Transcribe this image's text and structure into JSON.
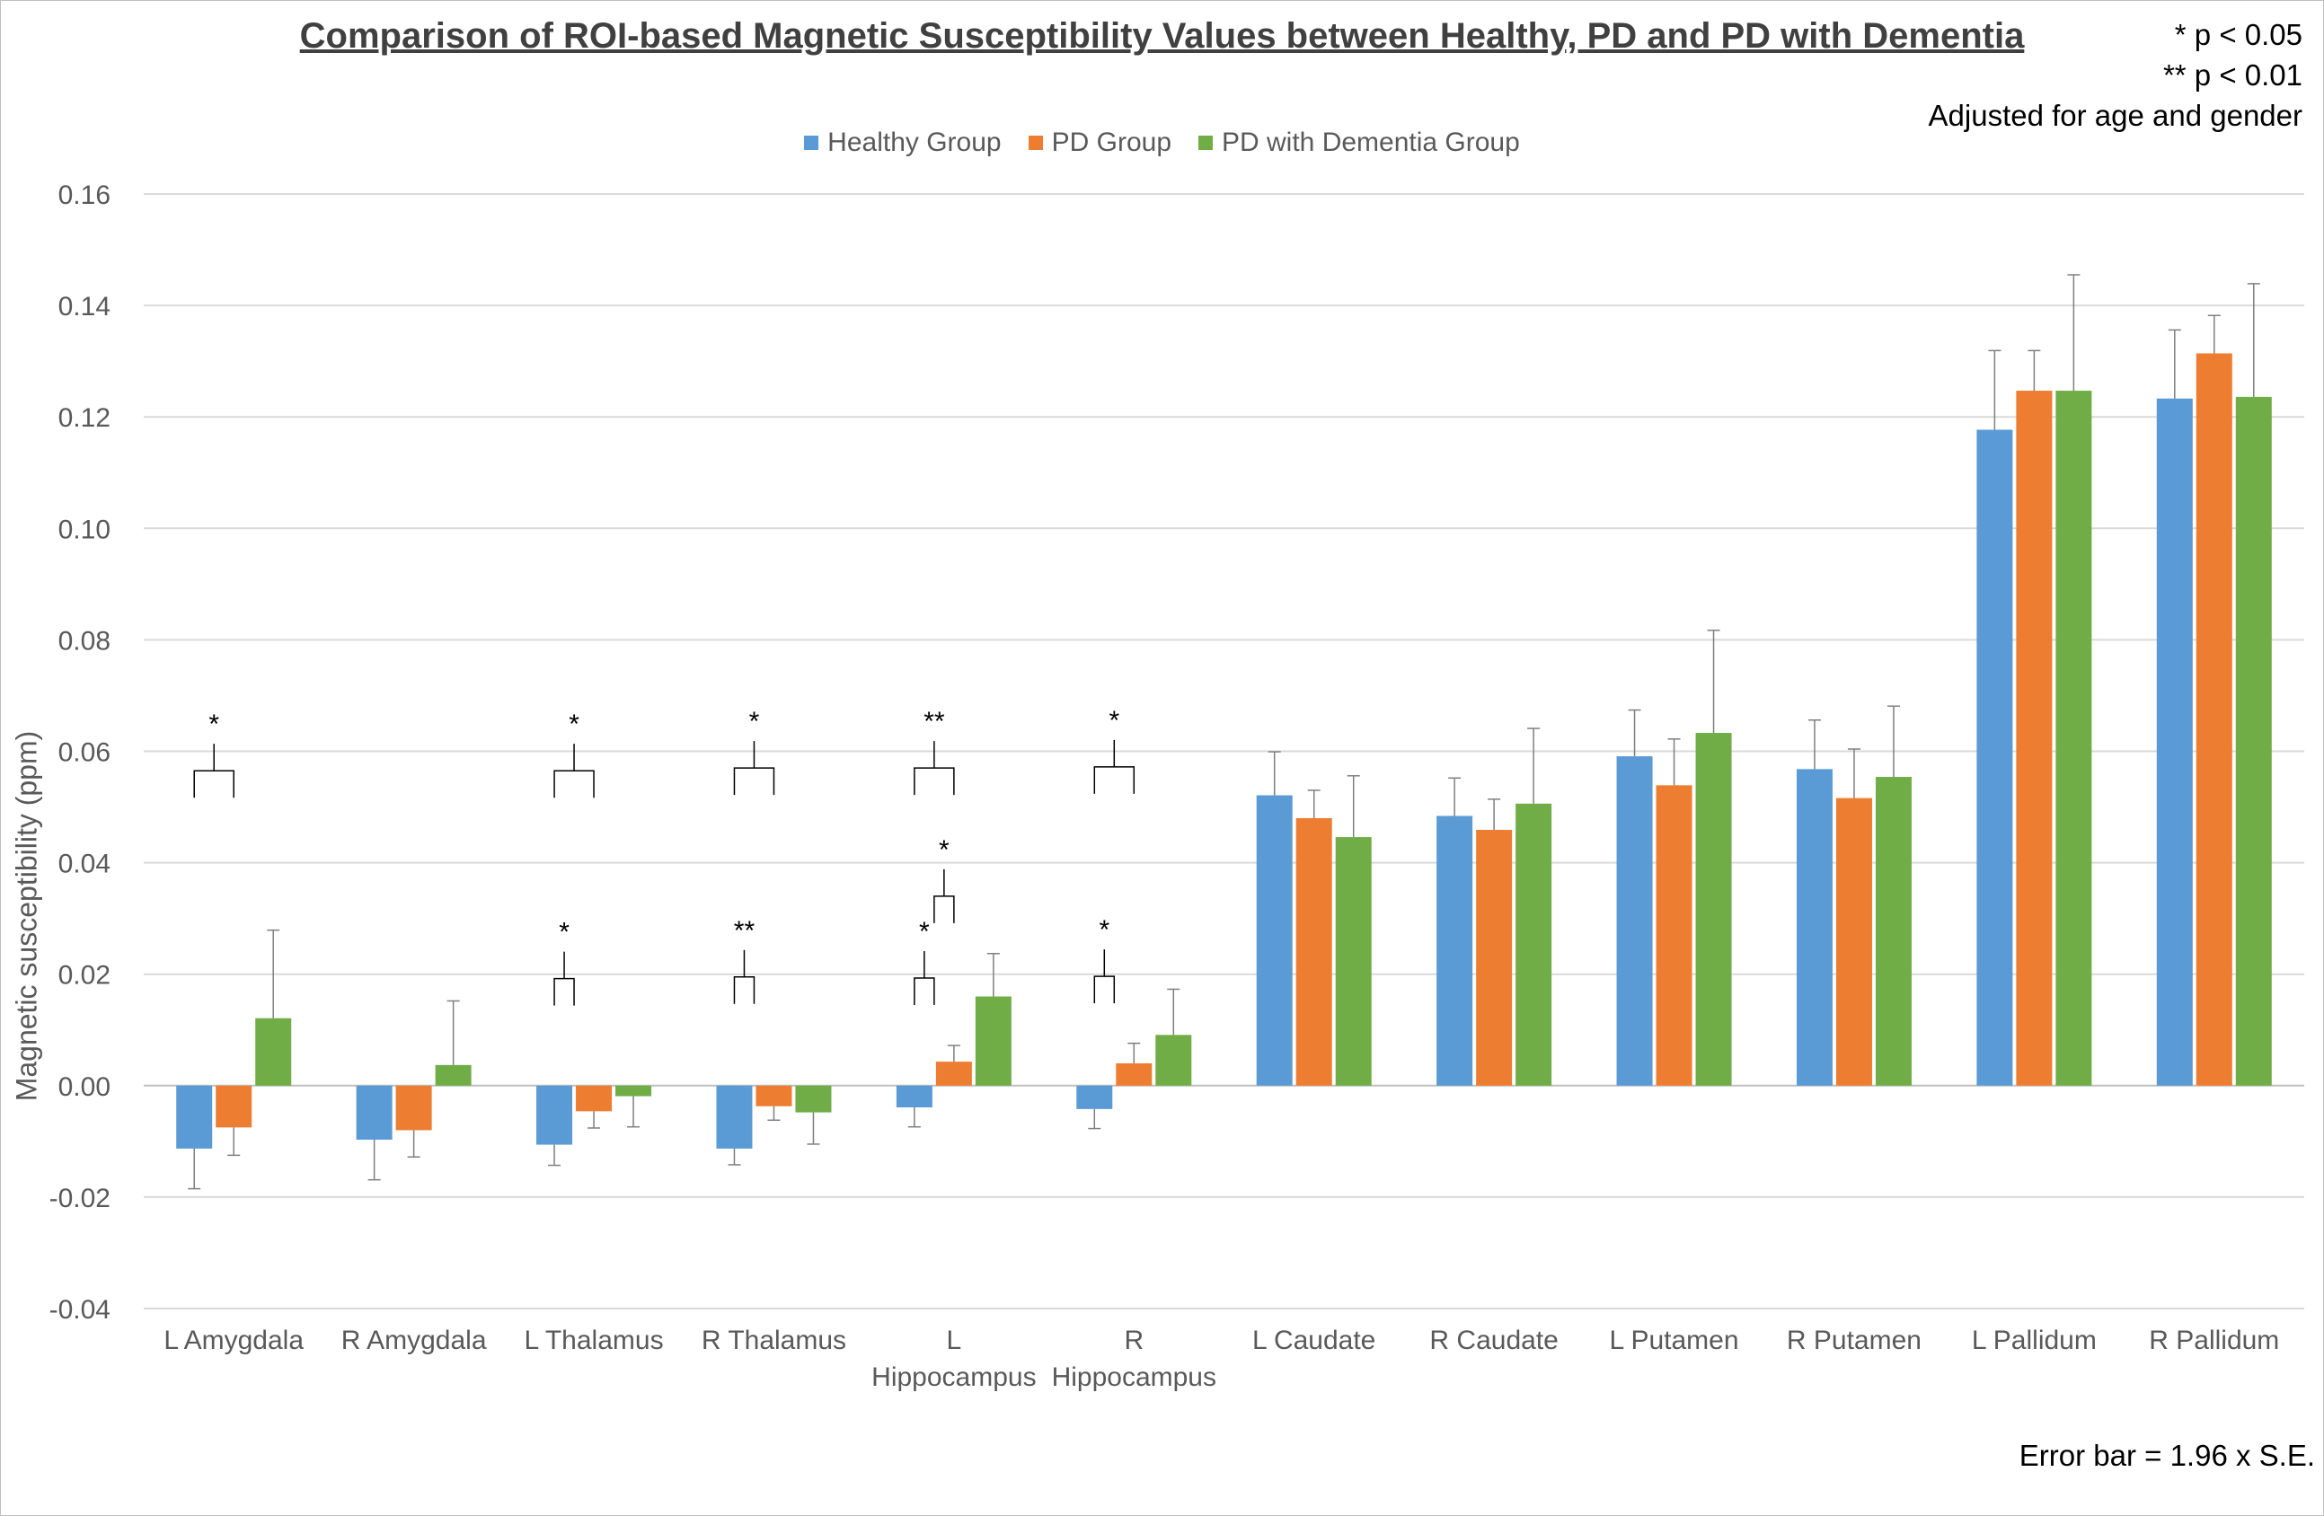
{
  "title": "Comparison of ROI-based Magnetic Susceptibility Values between Healthy, PD and PD with Dementia",
  "significance_notes": {
    "p05": "* p < 0.05",
    "p01": "** p < 0.01",
    "adjust": "Adjusted for age and gender"
  },
  "error_bar_note": "Error bar = 1.96 x S.E.",
  "colors": {
    "healthy": "#5b9bd5",
    "pd": "#ed7d31",
    "pdd": "#70ad47",
    "grid": "#d9d9d9",
    "axis_text": "#595959"
  },
  "chart_data": {
    "type": "bar",
    "title": "Comparison of ROI-based Magnetic Susceptibility Values between Healthy, PD and PD with Dementia",
    "xlabel": "",
    "ylabel": "Magnetic susceptibility (ppm)",
    "ylim": [
      -0.04,
      0.16
    ],
    "yticks": [
      "-0.04",
      "-0.02",
      "0.00",
      "0.02",
      "0.04",
      "0.06",
      "0.08",
      "0.10",
      "0.12",
      "0.14",
      "0.16"
    ],
    "grid": true,
    "legend_position": "top-center",
    "categories": [
      [
        "L Amygdala"
      ],
      [
        "R Amygdala"
      ],
      [
        "L Thalamus"
      ],
      [
        "R Thalamus"
      ],
      [
        "L",
        "Hippocampus"
      ],
      [
        "R",
        "Hippocampus"
      ],
      [
        "L Caudate"
      ],
      [
        "R Caudate"
      ],
      [
        "L Putamen"
      ],
      [
        "R Putamen"
      ],
      [
        "L Pallidum"
      ],
      [
        "R Pallidum"
      ]
    ],
    "series": [
      {
        "name": "Healthy Group",
        "color": "#5b9bd5",
        "values": [
          -0.0113,
          -0.0097,
          -0.0106,
          -0.0113,
          -0.0039,
          -0.0042,
          0.0521,
          0.0484,
          0.0591,
          0.0568,
          0.1177,
          0.1233
        ],
        "errors": [
          0.0072,
          0.0072,
          0.0037,
          0.0029,
          0.0035,
          0.0035,
          0.0078,
          0.0068,
          0.0083,
          0.0088,
          0.0142,
          0.0123
        ]
      },
      {
        "name": "PD Group",
        "color": "#ed7d31",
        "values": [
          -0.0075,
          -0.008,
          -0.0046,
          -0.0037,
          0.0043,
          0.004,
          0.048,
          0.0459,
          0.0539,
          0.0516,
          0.1247,
          0.1314
        ],
        "errors": [
          0.005,
          0.0048,
          0.003,
          0.0025,
          0.0029,
          0.0036,
          0.005,
          0.0055,
          0.0083,
          0.0088,
          0.0072,
          0.0068
        ]
      },
      {
        "name": "PD with Dementia Group",
        "color": "#70ad47",
        "values": [
          0.0121,
          0.0037,
          -0.0019,
          -0.0048,
          0.016,
          0.0091,
          0.0446,
          0.0506,
          0.0633,
          0.0554,
          0.1247,
          0.1236
        ],
        "errors": [
          0.0158,
          0.0115,
          0.0055,
          0.0057,
          0.0077,
          0.0082,
          0.011,
          0.0135,
          0.0184,
          0.0127,
          0.0208,
          0.0203
        ]
      }
    ],
    "significance": [
      {
        "category": 0,
        "from": 0,
        "to": 1,
        "label": "*",
        "y": 0.0565
      },
      {
        "category": 2,
        "from": 0,
        "to": 1,
        "label": "*",
        "y": 0.0565
      },
      {
        "category": 3,
        "from": 0,
        "to": 1,
        "label": "*",
        "y": 0.057
      },
      {
        "category": 4,
        "from": 0,
        "to": 1,
        "label": "**",
        "y": 0.057
      },
      {
        "category": 5,
        "from": 0,
        "to": 1,
        "label": "*",
        "y": 0.0572
      },
      {
        "category": 2,
        "from": 0,
        "to": 0.5,
        "label": "*",
        "y": 0.0192
      },
      {
        "category": 3,
        "from": 0,
        "to": 0.5,
        "label": "**",
        "y": 0.0195
      },
      {
        "category": 4,
        "from": 0,
        "to": 0.5,
        "label": "*",
        "y": 0.0193
      },
      {
        "category": 4,
        "from": 0.5,
        "to": 1,
        "label": "*",
        "y": 0.034
      },
      {
        "category": 5,
        "from": 0,
        "to": 0.5,
        "label": "*",
        "y": 0.0196
      }
    ]
  }
}
